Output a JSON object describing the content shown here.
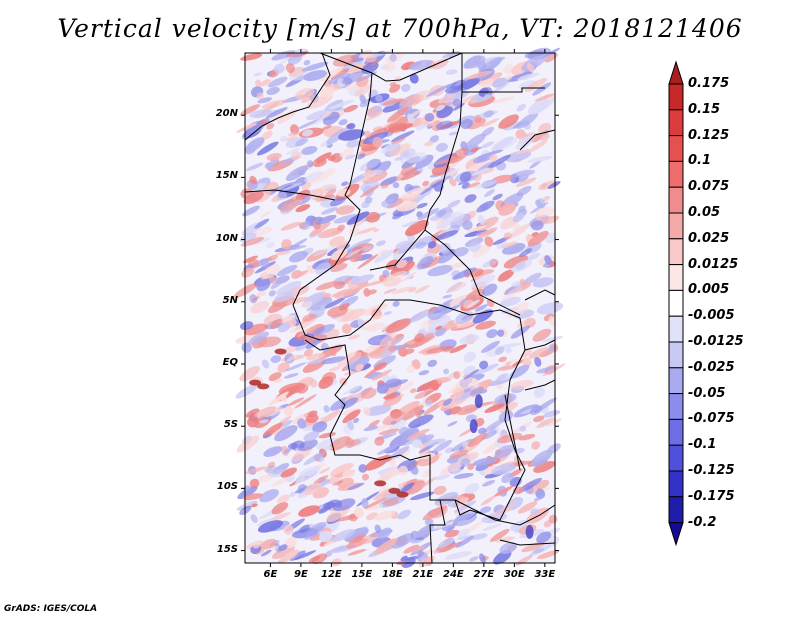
{
  "title": "Vertical velocity [m/s] at 700hPa, VT: 2018121406",
  "credit": "GrADS: IGES/COLA",
  "map": {
    "lat_range": [
      -16,
      25
    ],
    "lon_range": [
      3.5,
      34
    ],
    "y_ticks": [
      "20N",
      "15N",
      "10N",
      "5N",
      "EQ",
      "5S",
      "10S",
      "15S"
    ],
    "x_ticks": [
      "6E",
      "9E",
      "12E",
      "15E",
      "18E",
      "21E",
      "24E",
      "27E",
      "30E",
      "33E"
    ]
  },
  "colorbar": {
    "levels": [
      "0.175",
      "0.15",
      "0.125",
      "0.1",
      "0.075",
      "0.05",
      "0.025",
      "0.0125",
      "0.005",
      "-0.005",
      "-0.0125",
      "-0.025",
      "-0.05",
      "-0.075",
      "-0.1",
      "-0.125",
      "-0.175",
      "-0.2"
    ],
    "colors": [
      "#aa1e1e",
      "#c82828",
      "#dc3c3c",
      "#e65050",
      "#ee6e6e",
      "#f08c8c",
      "#f5aaaa",
      "#f9c8c8",
      "#fde6e6",
      "#ffffff",
      "#e1e1f8",
      "#c8c8f5",
      "#aaaaf0",
      "#8c8ceb",
      "#6e6ee6",
      "#5050dc",
      "#3232c8",
      "#1e1eaa",
      "#140a96"
    ]
  }
}
